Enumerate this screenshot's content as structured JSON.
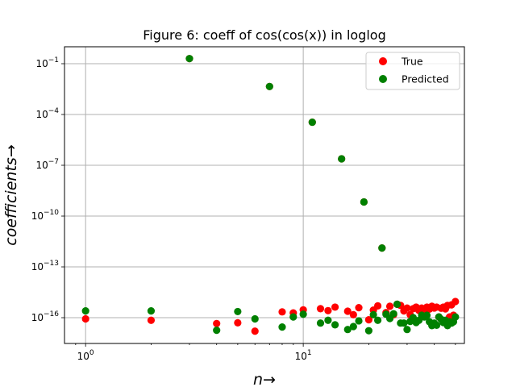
{
  "chart_data": {
    "type": "scatter",
    "title": "Figure 6: coeff of cos(cos(x)) in loglog",
    "xlabel": "n→",
    "ylabel": "coefficients→",
    "xscale": "log",
    "yscale": "log",
    "xlim": [
      0.8,
      55
    ],
    "ylim": [
      3e-18,
      1
    ],
    "grid": true,
    "legend_location": "top-right",
    "x_ticks": [
      {
        "value": 1,
        "base": "10",
        "exp": "0"
      },
      {
        "value": 10,
        "base": "10",
        "exp": "1"
      }
    ],
    "y_ticks": [
      {
        "value": 1e-16,
        "base": "10",
        "exp": "−16"
      },
      {
        "value": 1e-13,
        "base": "10",
        "exp": "−13"
      },
      {
        "value": 1e-10,
        "base": "10",
        "exp": "−10"
      },
      {
        "value": 1e-07,
        "base": "10",
        "exp": "−7"
      },
      {
        "value": 0.0001,
        "base": "10",
        "exp": "−4"
      },
      {
        "value": 0.1,
        "base": "10",
        "exp": "−1"
      }
    ],
    "series": [
      {
        "name": "True",
        "color": "#ff0000",
        "points": [
          [
            1,
            8.5e-17
          ],
          [
            2,
            7e-17
          ],
          [
            3,
            0.2
          ],
          [
            4,
            4.5e-17
          ],
          [
            5,
            5e-17
          ],
          [
            6,
            1.6e-17
          ],
          [
            7,
            0.0045
          ],
          [
            8,
            2.2e-16
          ],
          [
            9,
            1.9e-16
          ],
          [
            10,
            2.9e-16
          ],
          [
            11,
            3.5e-05
          ],
          [
            12,
            3.4e-16
          ],
          [
            13,
            2.6e-16
          ],
          [
            14,
            4.2e-16
          ],
          [
            15,
            2.4e-07
          ],
          [
            16,
            2.4e-16
          ],
          [
            17,
            1.5e-16
          ],
          [
            18,
            3.9e-16
          ],
          [
            19,
            6.8e-10
          ],
          [
            20,
            7.5e-17
          ],
          [
            21,
            2.8e-16
          ],
          [
            22,
            5e-16
          ],
          [
            23,
            1.3e-12
          ],
          [
            24,
            2e-16
          ],
          [
            25,
            4.7e-16
          ],
          [
            26,
            1.5e-16
          ],
          [
            27,
            6.2e-16
          ],
          [
            28,
            5.3e-16
          ],
          [
            29,
            2.5e-16
          ],
          [
            30,
            3.7e-16
          ],
          [
            31,
            1.5e-16
          ],
          [
            32,
            3.4e-16
          ],
          [
            33,
            4.2e-16
          ],
          [
            34,
            2.7e-16
          ],
          [
            35,
            3.7e-16
          ],
          [
            36,
            2.9e-16
          ],
          [
            37,
            4.2e-16
          ],
          [
            38,
            3.2e-16
          ],
          [
            39,
            4.7e-16
          ],
          [
            40,
            3.7e-16
          ],
          [
            41,
            4.2e-16
          ],
          [
            42,
            1.1e-16
          ],
          [
            43,
            3.6e-16
          ],
          [
            44,
            4.2e-16
          ],
          [
            45,
            3.3e-16
          ],
          [
            46,
            5.3e-16
          ],
          [
            47,
            1.1e-16
          ],
          [
            48,
            5.7e-16
          ],
          [
            49,
            1.4e-16
          ],
          [
            50,
            9e-16
          ]
        ]
      },
      {
        "name": "Predicted",
        "color": "#008000",
        "points": [
          [
            1,
            2.5e-16
          ],
          [
            2,
            2.5e-16
          ],
          [
            3,
            0.2
          ],
          [
            4,
            1.8e-17
          ],
          [
            5,
            2.3e-16
          ],
          [
            6,
            8.5e-17
          ],
          [
            7,
            0.0045
          ],
          [
            8,
            2.8e-17
          ],
          [
            9,
            1.1e-16
          ],
          [
            10,
            1.6e-16
          ],
          [
            11,
            3.5e-05
          ],
          [
            12,
            4.8e-17
          ],
          [
            13,
            7e-17
          ],
          [
            14,
            3.8e-17
          ],
          [
            15,
            2.4e-07
          ],
          [
            16,
            2e-17
          ],
          [
            17,
            3e-17
          ],
          [
            18,
            6.5e-17
          ],
          [
            19,
            6.8e-10
          ],
          [
            20,
            1.7e-17
          ],
          [
            21,
            1.5e-16
          ],
          [
            22,
            7e-17
          ],
          [
            23,
            1.3e-12
          ],
          [
            24,
            1.6e-16
          ],
          [
            25,
            9e-17
          ],
          [
            26,
            1.7e-16
          ],
          [
            27,
            6.2e-16
          ],
          [
            28,
            4.8e-17
          ],
          [
            29,
            4.8e-17
          ],
          [
            30,
            2e-17
          ],
          [
            31,
            6e-17
          ],
          [
            32,
            1e-16
          ],
          [
            33,
            5.2e-17
          ],
          [
            34,
            7e-17
          ],
          [
            35,
            1.4e-16
          ],
          [
            36,
            1.1e-16
          ],
          [
            37,
            1.4e-16
          ],
          [
            38,
            5.7e-17
          ],
          [
            39,
            3.4e-17
          ],
          [
            40,
            4.8e-17
          ],
          [
            41,
            3.6e-17
          ],
          [
            42,
            1.1e-16
          ],
          [
            43,
            8e-17
          ],
          [
            44,
            5.2e-17
          ],
          [
            45,
            7e-17
          ],
          [
            46,
            3.4e-17
          ],
          [
            47,
            5.7e-17
          ],
          [
            48,
            4.8e-17
          ],
          [
            49,
            5.7e-17
          ],
          [
            50,
            1.1e-16
          ]
        ]
      }
    ]
  }
}
